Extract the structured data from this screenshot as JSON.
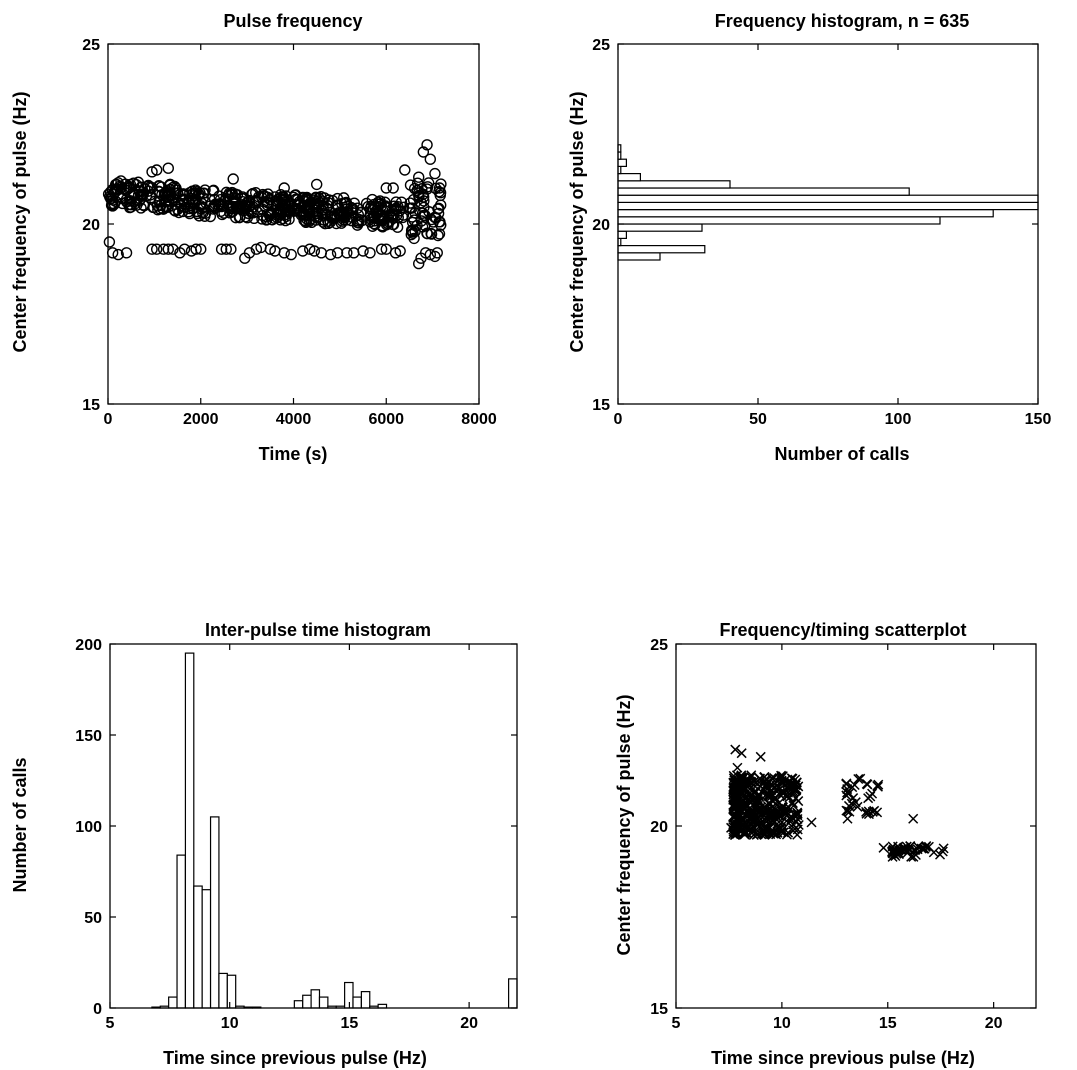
{
  "chart_data": [
    {
      "id": "p1",
      "type": "scatter",
      "title": "Pulse frequency",
      "xlabel": "Time (s)",
      "ylabel": "Center frequency of pulse (Hz)",
      "xlim": [
        0,
        8000
      ],
      "ylim": [
        15,
        25
      ],
      "xticks": [
        0,
        2000,
        4000,
        6000,
        8000
      ],
      "yticks": [
        15,
        20,
        25
      ],
      "marker": "circle",
      "upper_band": [
        {
          "t": 0,
          "f": 20.7
        },
        {
          "t": 6400,
          "f": 20.2
        }
      ],
      "lower_band_points": [
        {
          "x": 30,
          "y": 19.5
        },
        {
          "x": 100,
          "y": 19.2
        },
        {
          "x": 220,
          "y": 19.15
        },
        {
          "x": 400,
          "y": 19.2
        },
        {
          "x": 950,
          "y": 19.3
        },
        {
          "x": 1050,
          "y": 19.3
        },
        {
          "x": 1200,
          "y": 19.3
        },
        {
          "x": 1300,
          "y": 19.3
        },
        {
          "x": 1400,
          "y": 19.3
        },
        {
          "x": 1550,
          "y": 19.2
        },
        {
          "x": 1650,
          "y": 19.3
        },
        {
          "x": 1800,
          "y": 19.25
        },
        {
          "x": 1900,
          "y": 19.3
        },
        {
          "x": 2000,
          "y": 19.3
        },
        {
          "x": 2450,
          "y": 19.3
        },
        {
          "x": 2550,
          "y": 19.3
        },
        {
          "x": 2650,
          "y": 19.3
        },
        {
          "x": 2950,
          "y": 19.05
        },
        {
          "x": 3050,
          "y": 19.2
        },
        {
          "x": 3200,
          "y": 19.3
        },
        {
          "x": 3300,
          "y": 19.35
        },
        {
          "x": 3500,
          "y": 19.3
        },
        {
          "x": 3600,
          "y": 19.25
        },
        {
          "x": 3800,
          "y": 19.2
        },
        {
          "x": 3950,
          "y": 19.15
        },
        {
          "x": 4200,
          "y": 19.25
        },
        {
          "x": 4350,
          "y": 19.3
        },
        {
          "x": 4450,
          "y": 19.25
        },
        {
          "x": 4600,
          "y": 19.2
        },
        {
          "x": 4800,
          "y": 19.15
        },
        {
          "x": 4950,
          "y": 19.2
        },
        {
          "x": 5150,
          "y": 19.2
        },
        {
          "x": 5300,
          "y": 19.2
        },
        {
          "x": 5500,
          "y": 19.25
        },
        {
          "x": 5650,
          "y": 19.2
        },
        {
          "x": 5900,
          "y": 19.3
        },
        {
          "x": 6000,
          "y": 19.3
        },
        {
          "x": 6200,
          "y": 19.2
        },
        {
          "x": 6300,
          "y": 19.25
        },
        {
          "x": 6700,
          "y": 18.9
        },
        {
          "x": 6750,
          "y": 19.05
        },
        {
          "x": 6850,
          "y": 19.2
        },
        {
          "x": 6950,
          "y": 19.15
        },
        {
          "x": 7050,
          "y": 19.1
        },
        {
          "x": 7100,
          "y": 19.2
        }
      ],
      "outlier_points": [
        {
          "x": 950,
          "y": 21.45
        },
        {
          "x": 1050,
          "y": 21.5
        },
        {
          "x": 1300,
          "y": 21.55
        },
        {
          "x": 2700,
          "y": 21.25
        },
        {
          "x": 3800,
          "y": 21.0
        },
        {
          "x": 4500,
          "y": 21.1
        },
        {
          "x": 6000,
          "y": 21.0
        },
        {
          "x": 6150,
          "y": 21.0
        },
        {
          "x": 6400,
          "y": 21.5
        },
        {
          "x": 6800,
          "y": 22.0
        },
        {
          "x": 6880,
          "y": 22.2
        },
        {
          "x": 6950,
          "y": 21.8
        },
        {
          "x": 7050,
          "y": 21.4
        },
        {
          "x": 7150,
          "y": 21.0
        },
        {
          "x": 6700,
          "y": 21.3
        },
        {
          "x": 6600,
          "y": 19.6
        },
        {
          "x": 6550,
          "y": 19.8
        }
      ]
    },
    {
      "id": "p2",
      "type": "bar",
      "orientation": "horizontal",
      "title": "Frequency histogram, n = 635",
      "xlabel": "Number of calls",
      "ylabel": "Center frequency of pulse (Hz)",
      "xlim": [
        0,
        150
      ],
      "ylim": [
        15,
        25
      ],
      "xticks": [
        0,
        50,
        100,
        150
      ],
      "yticks": [
        15,
        20,
        25
      ],
      "bin_width": 0.2,
      "bins": [
        {
          "center": 19.1,
          "count": 15
        },
        {
          "center": 19.3,
          "count": 31
        },
        {
          "center": 19.5,
          "count": 1
        },
        {
          "center": 19.7,
          "count": 3
        },
        {
          "center": 19.9,
          "count": 30
        },
        {
          "center": 20.1,
          "count": 115
        },
        {
          "center": 20.3,
          "count": 134
        },
        {
          "center": 20.5,
          "count": 150
        },
        {
          "center": 20.7,
          "count": 150
        },
        {
          "center": 20.9,
          "count": 104
        },
        {
          "center": 21.1,
          "count": 40
        },
        {
          "center": 21.3,
          "count": 8
        },
        {
          "center": 21.5,
          "count": 1
        },
        {
          "center": 21.7,
          "count": 3
        },
        {
          "center": 21.9,
          "count": 1
        },
        {
          "center": 22.1,
          "count": 1
        }
      ]
    },
    {
      "id": "p3",
      "type": "bar",
      "title": "Inter-pulse time histogram",
      "xlabel": "Time since previous pulse (Hz)",
      "ylabel": "Number of calls",
      "xlim": [
        5,
        22
      ],
      "ylim": [
        0,
        200
      ],
      "xticks": [
        5,
        10,
        15,
        20
      ],
      "yticks": [
        0,
        50,
        100,
        150,
        200
      ],
      "bin_width": 0.35,
      "bins": [
        {
          "left": 6.75,
          "count": 0.5
        },
        {
          "left": 7.1,
          "count": 1
        },
        {
          "left": 7.45,
          "count": 6
        },
        {
          "left": 7.8,
          "count": 84
        },
        {
          "left": 8.15,
          "count": 195
        },
        {
          "left": 8.5,
          "count": 67
        },
        {
          "left": 8.85,
          "count": 65
        },
        {
          "left": 9.2,
          "count": 105
        },
        {
          "left": 9.55,
          "count": 19
        },
        {
          "left": 9.9,
          "count": 18
        },
        {
          "left": 10.25,
          "count": 1
        },
        {
          "left": 10.6,
          "count": 0.5
        },
        {
          "left": 10.95,
          "count": 0.5
        },
        {
          "left": 12.7,
          "count": 4
        },
        {
          "left": 13.05,
          "count": 7
        },
        {
          "left": 13.4,
          "count": 10
        },
        {
          "left": 13.75,
          "count": 6
        },
        {
          "left": 14.1,
          "count": 1
        },
        {
          "left": 14.45,
          "count": 1
        },
        {
          "left": 14.8,
          "count": 14
        },
        {
          "left": 15.15,
          "count": 6
        },
        {
          "left": 15.5,
          "count": 9
        },
        {
          "left": 15.85,
          "count": 1
        },
        {
          "left": 16.2,
          "count": 2
        },
        {
          "left": 21.65,
          "count": 16
        }
      ]
    },
    {
      "id": "p4",
      "type": "scatter",
      "title": "Frequency/timing scatterplot",
      "xlabel": "Time since previous pulse (Hz)",
      "ylabel": "Center frequency of pulse (Hz)",
      "xlim": [
        5,
        22
      ],
      "ylim": [
        15,
        25
      ],
      "xticks": [
        5,
        10,
        15,
        20
      ],
      "yticks": [
        15,
        20,
        25
      ],
      "marker": "x",
      "clusters": [
        {
          "x_range": [
            7.7,
            10.8
          ],
          "y_range": [
            19.75,
            21.4
          ],
          "count": 420
        },
        {
          "x_range": [
            13.0,
            14.6
          ],
          "y_range": [
            20.3,
            21.3
          ],
          "count": 30
        },
        {
          "x_range": [
            15.2,
            17.7
          ],
          "y_range": [
            19.15,
            19.45
          ],
          "count": 45
        }
      ],
      "points": [
        {
          "x": 7.8,
          "y": 22.1
        },
        {
          "x": 8.1,
          "y": 22.0
        },
        {
          "x": 7.9,
          "y": 21.6
        },
        {
          "x": 9.0,
          "y": 21.9
        },
        {
          "x": 10.5,
          "y": 21.3
        },
        {
          "x": 10.7,
          "y": 21.2
        },
        {
          "x": 11.4,
          "y": 20.1
        },
        {
          "x": 7.6,
          "y": 19.95
        },
        {
          "x": 13.1,
          "y": 20.2
        },
        {
          "x": 13.7,
          "y": 21.3
        },
        {
          "x": 14.5,
          "y": 21.1
        },
        {
          "x": 14.1,
          "y": 20.4
        },
        {
          "x": 14.8,
          "y": 19.4
        },
        {
          "x": 15.5,
          "y": 19.35
        },
        {
          "x": 16.2,
          "y": 20.2
        },
        {
          "x": 17.6,
          "y": 19.3
        }
      ]
    }
  ]
}
